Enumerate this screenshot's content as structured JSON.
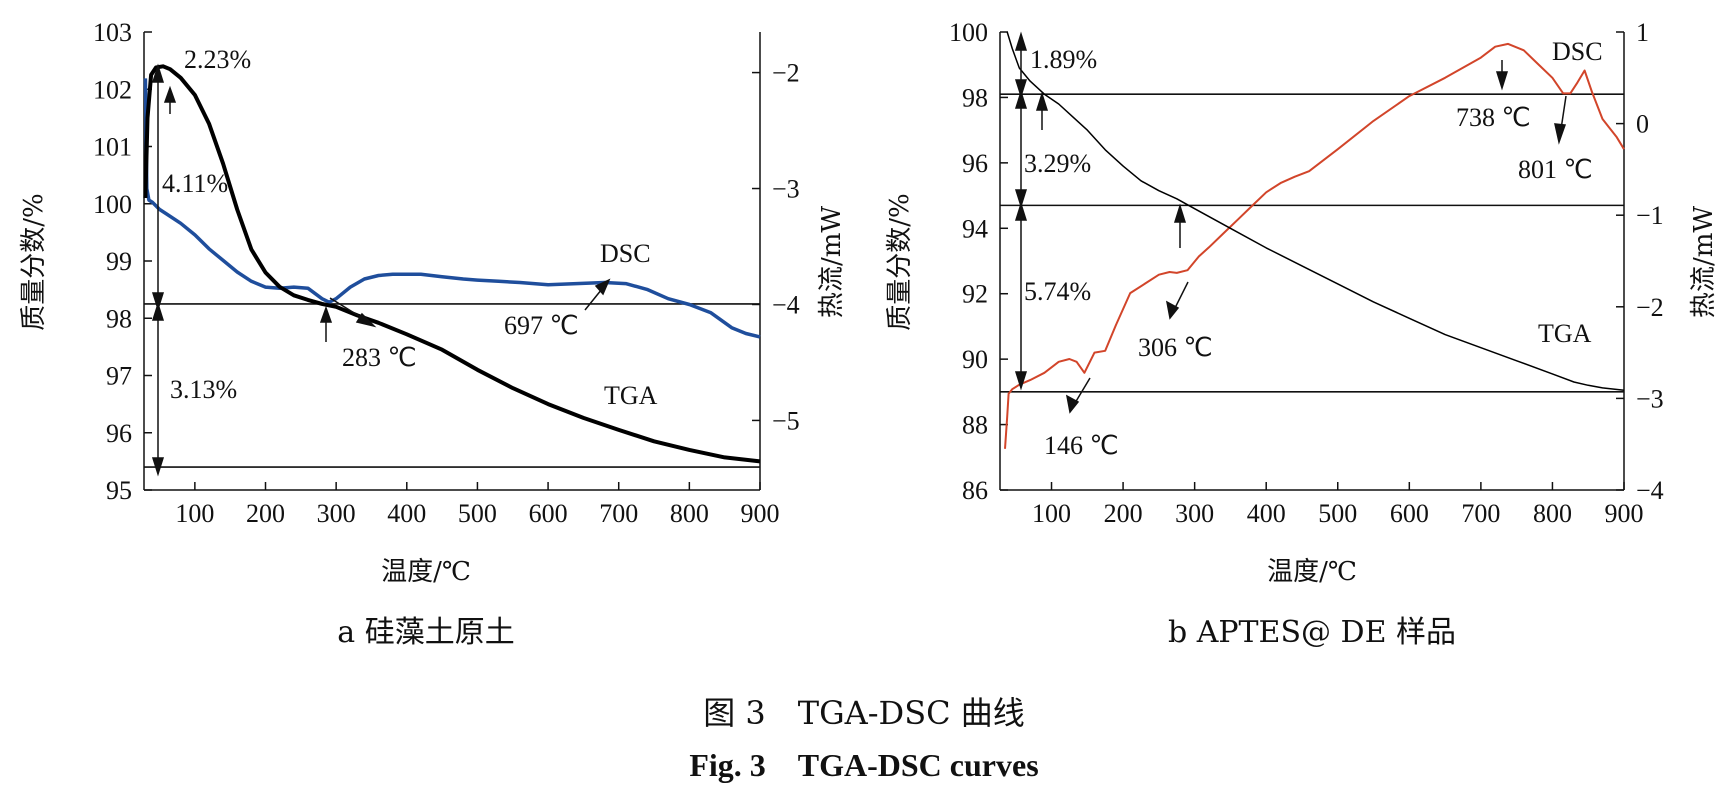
{
  "figure": {
    "caption_zh": "图 3　TGA-DSC 曲线",
    "caption_en": "Fig. 3　TGA-DSC curves"
  },
  "chart_data": [
    {
      "type": "line",
      "subtitle": "a 硅藻土原土",
      "xlabel": "温度/℃",
      "ylabel_left": "质量分数/%",
      "ylabel_right": "热流/mW",
      "xlim": [
        28,
        900
      ],
      "ylim_left": [
        95,
        103
      ],
      "ylim_right": [
        -5.6,
        -1.65
      ],
      "x_ticks": [
        100,
        200,
        300,
        400,
        500,
        600,
        700,
        800,
        900
      ],
      "y_left_ticks": [
        95,
        96,
        97,
        98,
        99,
        100,
        101,
        102,
        103
      ],
      "y_right_ticks": [
        -5,
        -4,
        -3,
        -2
      ],
      "grid": false,
      "series": [
        {
          "name": "TGA",
          "axis": "left",
          "color": "#000000",
          "x": [
            30,
            33,
            38,
            45,
            55,
            65,
            80,
            100,
            120,
            140,
            160,
            180,
            200,
            220,
            240,
            260,
            280,
            300,
            330,
            360,
            400,
            450,
            500,
            550,
            600,
            650,
            700,
            750,
            800,
            850,
            900
          ],
          "y": [
            100.1,
            101.5,
            102.25,
            102.38,
            102.4,
            102.35,
            102.2,
            101.9,
            101.4,
            100.7,
            99.9,
            99.2,
            98.8,
            98.55,
            98.4,
            98.32,
            98.25,
            98.2,
            98.05,
            97.92,
            97.72,
            97.45,
            97.1,
            96.78,
            96.5,
            96.26,
            96.05,
            95.85,
            95.7,
            95.57,
            95.5
          ]
        },
        {
          "name": "DSC",
          "axis": "right",
          "color": "#1f4e9c",
          "x": [
            30,
            32,
            35,
            40,
            50,
            60,
            80,
            100,
            120,
            140,
            160,
            180,
            200,
            220,
            240,
            260,
            280,
            290,
            300,
            320,
            340,
            360,
            380,
            400,
            420,
            450,
            480,
            500,
            530,
            560,
            600,
            640,
            680,
            710,
            740,
            770,
            800,
            830,
            860,
            880,
            900
          ],
          "y": [
            -2.05,
            -3.0,
            -3.1,
            -3.12,
            -3.18,
            -3.22,
            -3.3,
            -3.4,
            -3.52,
            -3.62,
            -3.72,
            -3.8,
            -3.85,
            -3.86,
            -3.85,
            -3.86,
            -3.95,
            -3.98,
            -3.95,
            -3.85,
            -3.78,
            -3.75,
            -3.74,
            -3.74,
            -3.74,
            -3.76,
            -3.78,
            -3.79,
            -3.8,
            -3.81,
            -3.83,
            -3.82,
            -3.81,
            -3.82,
            -3.87,
            -3.95,
            -4.0,
            -4.07,
            -4.2,
            -4.25,
            -4.28
          ]
        }
      ],
      "annotations": [
        {
          "id": "pct_223",
          "text": "2.23%"
        },
        {
          "id": "pct_411",
          "text": "4.11%"
        },
        {
          "id": "pct_313",
          "text": "3.13%"
        },
        {
          "id": "temp_283",
          "text": "283 ℃"
        },
        {
          "id": "temp_697",
          "text": "697 ℃"
        }
      ],
      "series_labels": [
        "DSC",
        "TGA"
      ],
      "reference_lines_left": [
        98.25,
        95.4
      ]
    },
    {
      "type": "line",
      "subtitle": "b APTES@ DE 样品",
      "xlabel": "温度/℃",
      "ylabel_left": "质量分数/%",
      "ylabel_right": "热流/mW",
      "xlim": [
        28,
        900
      ],
      "ylim_left": [
        86,
        100
      ],
      "ylim_right": [
        -4,
        1
      ],
      "x_ticks": [
        100,
        200,
        300,
        400,
        500,
        600,
        700,
        800,
        900
      ],
      "y_left_ticks": [
        86,
        88,
        90,
        92,
        94,
        96,
        98,
        100
      ],
      "y_right_ticks": [
        -4,
        -3,
        -2,
        -1,
        0,
        1
      ],
      "grid": false,
      "series": [
        {
          "name": "TGA",
          "axis": "left",
          "color": "#000000",
          "x": [
            38,
            45,
            55,
            70,
            90,
            110,
            130,
            150,
            175,
            200,
            225,
            250,
            275,
            300,
            350,
            400,
            450,
            500,
            550,
            600,
            650,
            700,
            750,
            800,
            830,
            850,
            870,
            900
          ],
          "y": [
            100,
            99.5,
            98.9,
            98.5,
            98.1,
            97.8,
            97.4,
            97.0,
            96.4,
            95.9,
            95.45,
            95.15,
            94.9,
            94.6,
            94.0,
            93.4,
            92.85,
            92.3,
            91.75,
            91.25,
            90.75,
            90.35,
            89.95,
            89.55,
            89.3,
            89.2,
            89.12,
            89.05
          ]
        },
        {
          "name": "DSC",
          "axis": "right",
          "color": "#d2452a",
          "x": [
            35,
            38,
            40,
            45,
            55,
            70,
            90,
            110,
            125,
            135,
            146,
            160,
            175,
            190,
            210,
            230,
            250,
            265,
            275,
            290,
            306,
            320,
            340,
            360,
            380,
            400,
            420,
            440,
            460,
            500,
            550,
            600,
            650,
            700,
            720,
            738,
            760,
            780,
            800,
            815,
            825,
            835,
            845,
            855,
            870,
            890,
            900
          ],
          "y": [
            -3.55,
            -3.2,
            -2.95,
            -2.9,
            -2.85,
            -2.8,
            -2.72,
            -2.6,
            -2.57,
            -2.6,
            -2.72,
            -2.5,
            -2.48,
            -2.2,
            -1.85,
            -1.75,
            -1.65,
            -1.62,
            -1.63,
            -1.6,
            -1.45,
            -1.35,
            -1.2,
            -1.05,
            -0.9,
            -0.75,
            -0.65,
            -0.58,
            -0.52,
            -0.28,
            0.03,
            0.3,
            0.5,
            0.72,
            0.84,
            0.87,
            0.8,
            0.65,
            0.5,
            0.33,
            0.33,
            0.45,
            0.58,
            0.35,
            0.05,
            -0.15,
            -0.28
          ]
        }
      ],
      "annotations": [
        {
          "id": "pct_189",
          "text": "1.89%"
        },
        {
          "id": "pct_329",
          "text": "3.29%"
        },
        {
          "id": "pct_574",
          "text": "5.74%"
        },
        {
          "id": "temp_146",
          "text": "146 ℃"
        },
        {
          "id": "temp_306",
          "text": "306 ℃"
        },
        {
          "id": "temp_738",
          "text": "738 ℃"
        },
        {
          "id": "temp_801",
          "text": "801 ℃"
        }
      ],
      "series_labels": [
        "DSC",
        "TGA"
      ],
      "reference_lines_left": [
        98.1,
        94.7,
        89.0
      ]
    }
  ]
}
